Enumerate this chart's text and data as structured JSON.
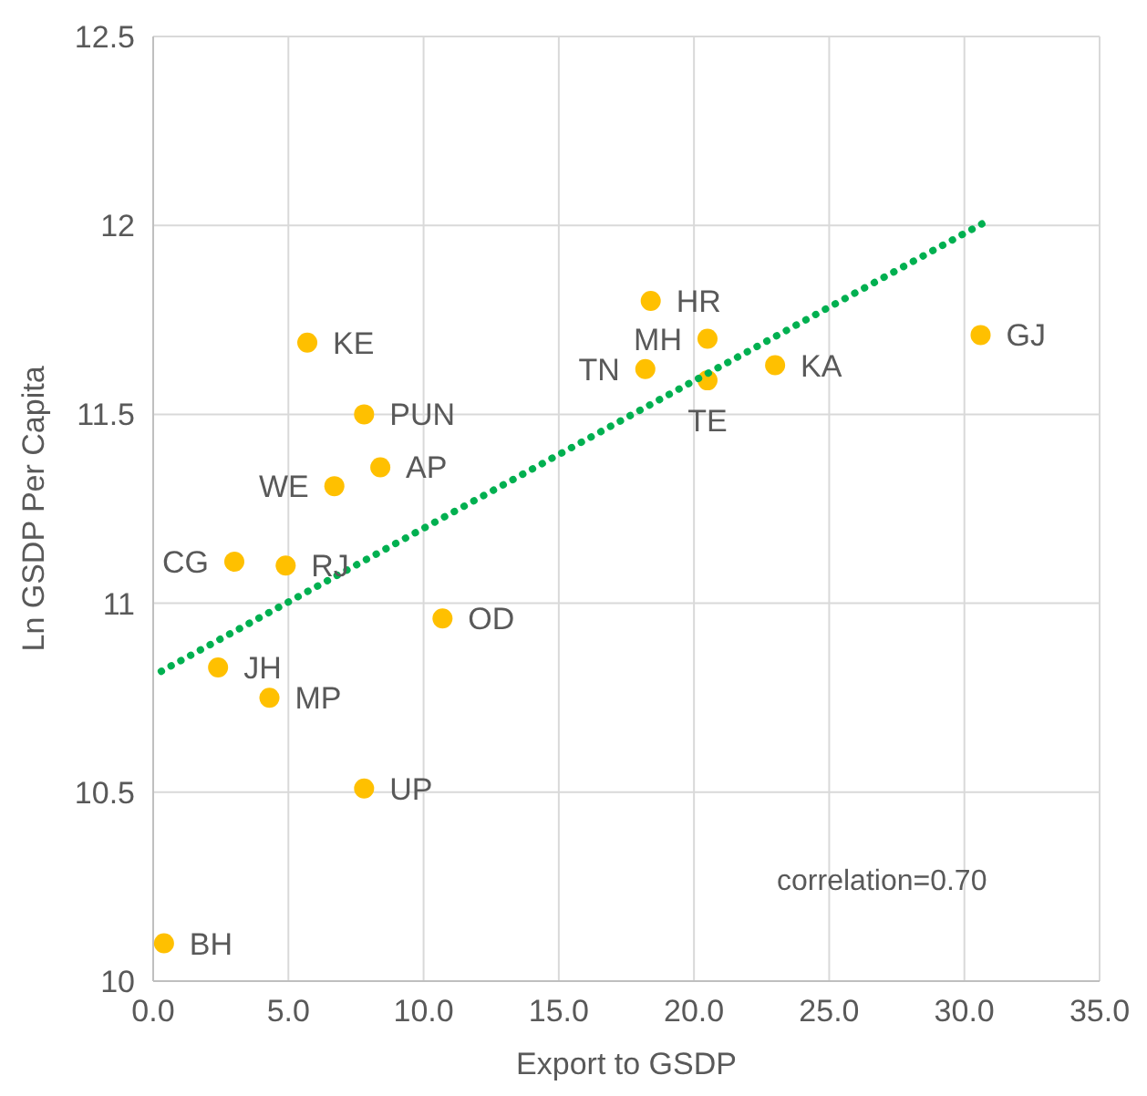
{
  "chart_data": {
    "type": "scatter",
    "xlabel": "Export to GSDP",
    "ylabel": "Ln GSDP Per Capita",
    "xlim": [
      0,
      35
    ],
    "xticks": [
      {
        "value": 0,
        "label": "0.0"
      },
      {
        "value": 5,
        "label": "5.0"
      },
      {
        "value": 10,
        "label": "10.0"
      },
      {
        "value": 15,
        "label": "15.0"
      },
      {
        "value": 20,
        "label": "20.0"
      },
      {
        "value": 25,
        "label": "25.0"
      },
      {
        "value": 30,
        "label": "30.0"
      },
      {
        "value": 35,
        "label": "35.0"
      }
    ],
    "ylim": [
      10,
      12.5
    ],
    "yticks": [
      10,
      10.5,
      11,
      11.5,
      12,
      12.5
    ],
    "grid": true,
    "series": [
      {
        "color": "#ffc000",
        "marker": "circle",
        "x": [
          5.7,
          18.4,
          20.5,
          30.6,
          18.2,
          20.5,
          23.0,
          7.8,
          8.4,
          6.7,
          3.0,
          4.9,
          10.7,
          2.4,
          4.3,
          7.8,
          0.4
        ],
        "values": [
          11.69,
          11.8,
          11.7,
          11.71,
          11.62,
          11.59,
          11.63,
          11.5,
          11.36,
          11.31,
          11.11,
          11.1,
          10.96,
          10.83,
          10.75,
          10.51,
          10.1
        ]
      },
      {
        "type": "line",
        "color": "#00b050",
        "line_style": "dotted",
        "marker": "none",
        "x": [
          0.3,
          30.8
        ],
        "values": [
          10.82,
          12.01
        ]
      }
    ],
    "annotations": [
      {
        "text": "KE",
        "x": 5.7,
        "y": 11.69
      },
      {
        "text": "HR",
        "x": 18.4,
        "y": 11.8
      },
      {
        "text": "MH",
        "x": 20.5,
        "y": 11.7
      },
      {
        "text": "GJ",
        "x": 30.6,
        "y": 11.71
      },
      {
        "text": "TN",
        "x": 18.2,
        "y": 11.62
      },
      {
        "text": "TE",
        "x": 20.5,
        "y": 11.59
      },
      {
        "text": "KA",
        "x": 23.0,
        "y": 11.63
      },
      {
        "text": "PUN",
        "x": 7.8,
        "y": 11.5
      },
      {
        "text": "AP",
        "x": 8.4,
        "y": 11.36
      },
      {
        "text": "WE",
        "x": 6.7,
        "y": 11.31
      },
      {
        "text": "CG",
        "x": 3.0,
        "y": 11.11
      },
      {
        "text": "RJ",
        "x": 4.9,
        "y": 11.1
      },
      {
        "text": "OD",
        "x": 10.7,
        "y": 10.96
      },
      {
        "text": "JH",
        "x": 2.4,
        "y": 10.83
      },
      {
        "text": "MP",
        "x": 4.3,
        "y": 10.75
      },
      {
        "text": "UP",
        "x": 7.8,
        "y": 10.51
      },
      {
        "text": "BH",
        "x": 0.4,
        "y": 10.1
      },
      "correlation=0.70"
    ]
  }
}
